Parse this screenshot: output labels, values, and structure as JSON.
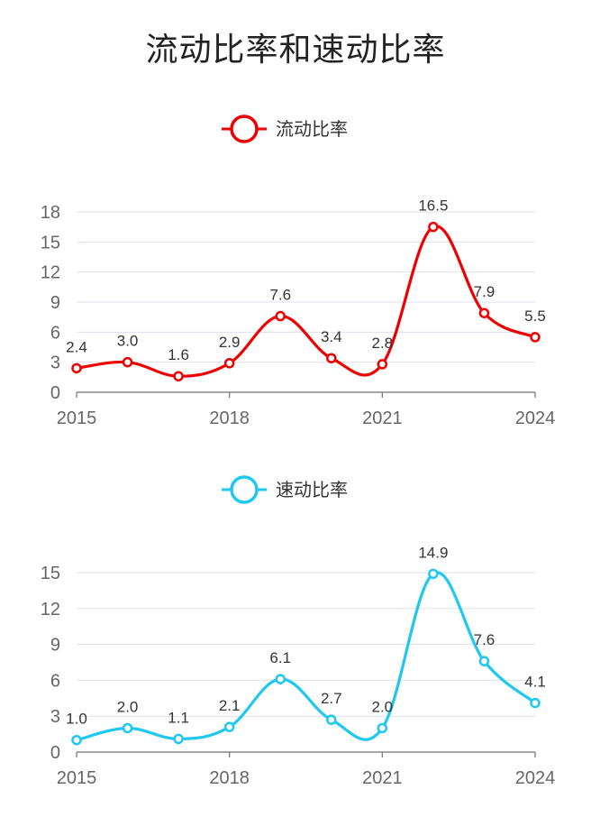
{
  "title": "流动比率和速动比率",
  "chart_data": [
    {
      "type": "line",
      "legend": "流动比率",
      "color": "#ee0000",
      "smooth": true,
      "x": [
        2015,
        2016,
        2017,
        2018,
        2019,
        2020,
        2021,
        2022,
        2023,
        2024
      ],
      "x_tick_labels": [
        "2015",
        "2018",
        "2021",
        "2024"
      ],
      "series": [
        {
          "name": "流动比率",
          "values": [
            2.4,
            3.0,
            1.6,
            2.9,
            7.6,
            3.4,
            2.8,
            16.5,
            7.9,
            5.5
          ]
        }
      ],
      "data_labels": [
        "2.4",
        "3.0",
        "1.6",
        "2.9",
        "7.6",
        "3.4",
        "2.8",
        "16.5",
        "7.9",
        "5.5"
      ],
      "y_ticks": [
        0,
        3,
        6,
        9,
        12,
        15,
        18
      ],
      "ylim": [
        0,
        18
      ],
      "xlim": [
        2015,
        2024
      ],
      "grid": true,
      "legend_position": "top-center"
    },
    {
      "type": "line",
      "legend": "速动比率",
      "color": "#1ec8f0",
      "smooth": true,
      "x": [
        2015,
        2016,
        2017,
        2018,
        2019,
        2020,
        2021,
        2022,
        2023,
        2024
      ],
      "x_tick_labels": [
        "2015",
        "2018",
        "2021",
        "2024"
      ],
      "series": [
        {
          "name": "速动比率",
          "values": [
            1.0,
            2.0,
            1.1,
            2.1,
            6.1,
            2.7,
            2.0,
            14.9,
            7.6,
            4.1
          ]
        }
      ],
      "data_labels": [
        "1.0",
        "2.0",
        "1.1",
        "2.1",
        "6.1",
        "2.7",
        "2.0",
        "14.9",
        "7.6",
        "4.1"
      ],
      "y_ticks": [
        0,
        3,
        6,
        9,
        12,
        15
      ],
      "ylim": [
        0,
        15
      ],
      "xlim": [
        2015,
        2024
      ],
      "grid": true,
      "legend_position": "top-center"
    }
  ]
}
